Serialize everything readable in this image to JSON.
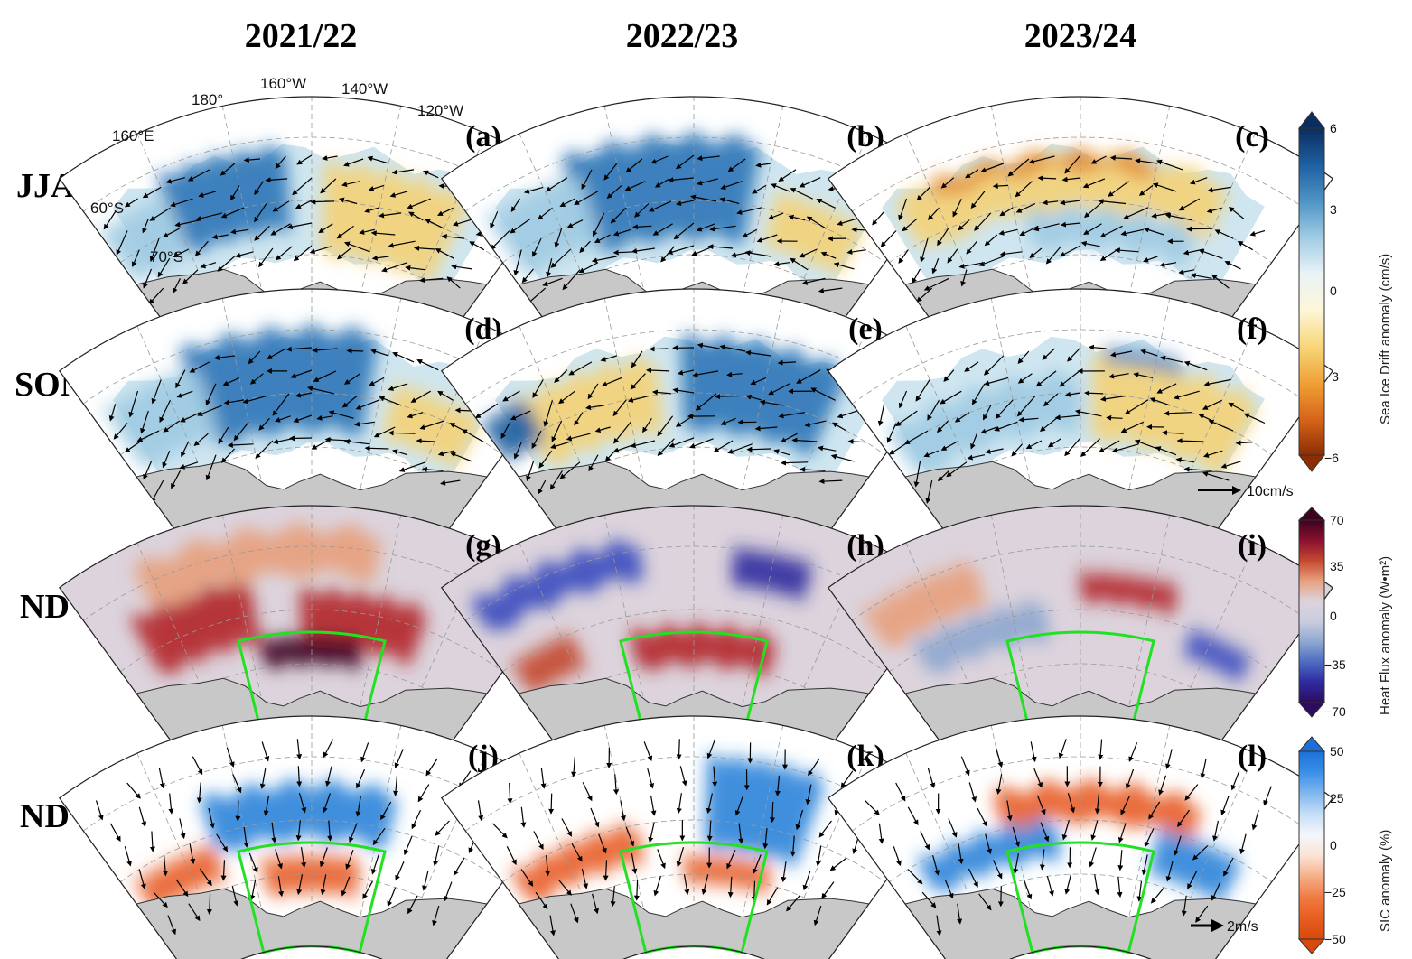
{
  "columns": [
    "2021/22",
    "2022/23",
    "2023/24"
  ],
  "rows": [
    "JJA",
    "SON",
    "ND",
    "ND"
  ],
  "panels": [
    {
      "label": "(a)",
      "kind": "drift",
      "style": "mixed_blue_yellow"
    },
    {
      "label": "(b)",
      "kind": "drift",
      "style": "mostly_blue"
    },
    {
      "label": "(c)",
      "kind": "drift",
      "style": "yellow_thin"
    },
    {
      "label": "(d)",
      "kind": "drift",
      "style": "mostly_blue"
    },
    {
      "label": "(e)",
      "kind": "drift",
      "style": "mixed_yellow_blue"
    },
    {
      "label": "(f)",
      "kind": "drift",
      "style": "blue_then_yellow"
    },
    {
      "label": "(g)",
      "kind": "heat",
      "style": "red"
    },
    {
      "label": "(h)",
      "kind": "heat",
      "style": "blue_red"
    },
    {
      "label": "(i)",
      "kind": "heat",
      "style": "weak"
    },
    {
      "label": "(j)",
      "kind": "sic",
      "style": "mixed"
    },
    {
      "label": "(k)",
      "kind": "sic",
      "style": "red_blue"
    },
    {
      "label": "(l)",
      "kind": "sic",
      "style": "red_blue2"
    }
  ],
  "geo_labels": {
    "lon_160E": "160°E",
    "lon_180": "180°",
    "lon_160W": "160°W",
    "lon_140W": "140°W",
    "lon_120W": "120°W",
    "lat_60S": "60°S",
    "lat_70S": "70°S"
  },
  "colorbars": [
    {
      "label": "Sea Ice Drift anomaly (cm/s)",
      "ticks": [
        "6",
        "3",
        "0",
        "−3",
        "−6"
      ],
      "colors": [
        "#0b2d5e",
        "#1d5fa0",
        "#4e93c6",
        "#9fcbe3",
        "#e9f3f7",
        "#fdf6d8",
        "#f7d77a",
        "#efa236",
        "#d8651a",
        "#8c2d04"
      ]
    },
    {
      "label": "Heat Flux anomaly (W•m²)",
      "ticks": [
        "70",
        "35",
        "0",
        "−35",
        "−70"
      ],
      "colors": [
        "#3b0320",
        "#8a1130",
        "#c4492f",
        "#e7a17e",
        "#dcd3dc",
        "#c9cde0",
        "#8ea7cf",
        "#4d6cc2",
        "#2f2aa0",
        "#2d0b5e"
      ]
    },
    {
      "label": "SIC anomaly (%)",
      "ticks": [
        "50",
        "25",
        "0",
        "−25",
        "−50"
      ],
      "colors": [
        "#1d6fd8",
        "#3b8fe6",
        "#7fb6ef",
        "#c4def6",
        "#f4f7fb",
        "#fbe3d6",
        "#f6ae88",
        "#f07a44",
        "#e85d1f",
        "#d64a0c"
      ]
    }
  ],
  "reference_vectors": [
    "10cm/s",
    "2m/s"
  ],
  "colors": {
    "land": "#c8c8c8",
    "box": "#22e022",
    "drift_blue": "#2f78b8",
    "drift_yellow": "#f3d37a",
    "heat_red": "#b3262a",
    "heat_blue": "#3d4fbf",
    "sic_red": "#e8622a",
    "sic_blue": "#2f86da"
  }
}
